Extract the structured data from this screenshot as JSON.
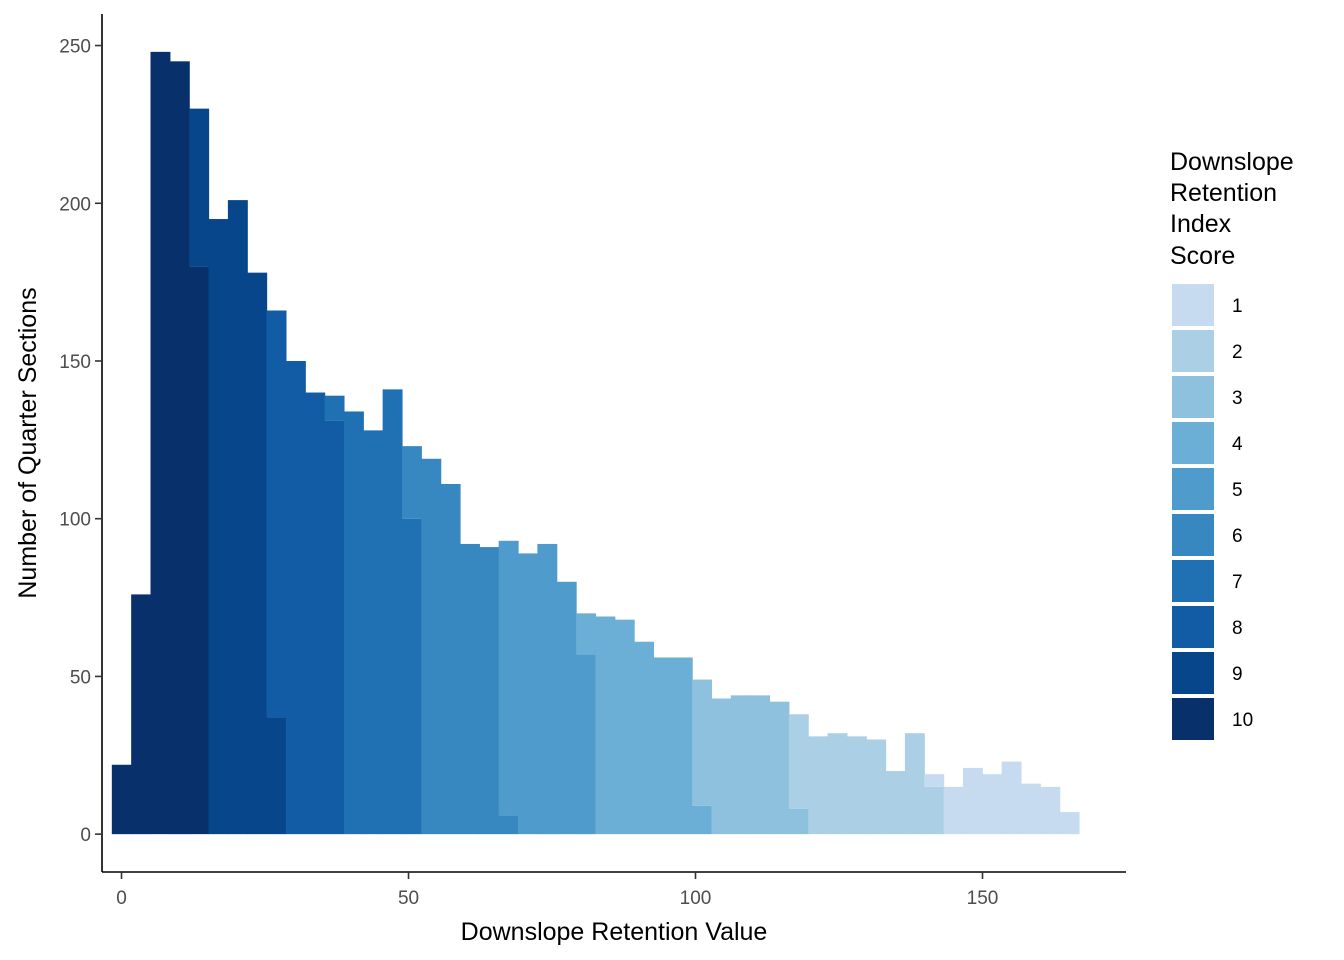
{
  "chart_data": {
    "type": "bar",
    "subtype": "stacked-histogram",
    "xlabel": "Downslope Retention Value",
    "ylabel": "Number of Quarter Sections",
    "xlim": [
      -3.4,
      175
    ],
    "ylim": [
      -12,
      260
    ],
    "xticks": [
      0,
      50,
      100,
      150
    ],
    "yticks": [
      0,
      50,
      100,
      150,
      200,
      250
    ],
    "bin_width": 3.37,
    "bin_start": -1.69,
    "grid": false,
    "legend": {
      "title": [
        "Downslope",
        "Retention",
        "Index",
        "Score"
      ],
      "position": "right",
      "entries": [
        {
          "label": "1",
          "color": "#C6DBEF"
        },
        {
          "label": "2",
          "color": "#ABCFE5"
        },
        {
          "label": "3",
          "color": "#8EC1DE"
        },
        {
          "label": "4",
          "color": "#6BAED6"
        },
        {
          "label": "5",
          "color": "#4F9BCB"
        },
        {
          "label": "6",
          "color": "#3787C0"
        },
        {
          "label": "7",
          "color": "#2070B4"
        },
        {
          "label": "8",
          "color": "#115CA5"
        },
        {
          "label": "9",
          "color": "#08468B"
        },
        {
          "label": "10",
          "color": "#08306B"
        }
      ]
    },
    "bins": [
      {
        "total": 22,
        "segments": [
          {
            "score": "10",
            "count": 22
          }
        ]
      },
      {
        "total": 76,
        "segments": [
          {
            "score": "10",
            "count": 76
          }
        ]
      },
      {
        "total": 248,
        "segments": [
          {
            "score": "10",
            "count": 248
          }
        ]
      },
      {
        "total": 245,
        "segments": [
          {
            "score": "10",
            "count": 245
          }
        ]
      },
      {
        "total": 230,
        "segments": [
          {
            "score": "10",
            "count": 180
          },
          {
            "score": "9",
            "count": 50
          }
        ]
      },
      {
        "total": 195,
        "segments": [
          {
            "score": "9",
            "count": 195
          }
        ]
      },
      {
        "total": 201,
        "segments": [
          {
            "score": "9",
            "count": 201
          }
        ]
      },
      {
        "total": 178,
        "segments": [
          {
            "score": "9",
            "count": 178
          }
        ]
      },
      {
        "total": 166,
        "segments": [
          {
            "score": "9",
            "count": 37
          },
          {
            "score": "8",
            "count": 129
          }
        ]
      },
      {
        "total": 150,
        "segments": [
          {
            "score": "8",
            "count": 150
          }
        ]
      },
      {
        "total": 140,
        "segments": [
          {
            "score": "8",
            "count": 140
          }
        ]
      },
      {
        "total": 139,
        "segments": [
          {
            "score": "8",
            "count": 131
          },
          {
            "score": "7",
            "count": 8
          }
        ]
      },
      {
        "total": 134,
        "segments": [
          {
            "score": "7",
            "count": 134
          }
        ]
      },
      {
        "total": 128,
        "segments": [
          {
            "score": "7",
            "count": 128
          }
        ]
      },
      {
        "total": 141,
        "segments": [
          {
            "score": "7",
            "count": 141
          }
        ]
      },
      {
        "total": 123,
        "segments": [
          {
            "score": "7",
            "count": 100
          },
          {
            "score": "6",
            "count": 23
          }
        ]
      },
      {
        "total": 119,
        "segments": [
          {
            "score": "6",
            "count": 119
          }
        ]
      },
      {
        "total": 111,
        "segments": [
          {
            "score": "6",
            "count": 111
          }
        ]
      },
      {
        "total": 92,
        "segments": [
          {
            "score": "6",
            "count": 92
          }
        ]
      },
      {
        "total": 91,
        "segments": [
          {
            "score": "6",
            "count": 91
          }
        ]
      },
      {
        "total": 93,
        "segments": [
          {
            "score": "6",
            "count": 6
          },
          {
            "score": "5",
            "count": 87
          }
        ]
      },
      {
        "total": 89,
        "segments": [
          {
            "score": "5",
            "count": 89
          }
        ]
      },
      {
        "total": 92,
        "segments": [
          {
            "score": "5",
            "count": 92
          }
        ]
      },
      {
        "total": 80,
        "segments": [
          {
            "score": "5",
            "count": 80
          }
        ]
      },
      {
        "total": 70,
        "segments": [
          {
            "score": "5",
            "count": 57
          },
          {
            "score": "4",
            "count": 13
          }
        ]
      },
      {
        "total": 69,
        "segments": [
          {
            "score": "4",
            "count": 69
          }
        ]
      },
      {
        "total": 68,
        "segments": [
          {
            "score": "4",
            "count": 68
          }
        ]
      },
      {
        "total": 61,
        "segments": [
          {
            "score": "4",
            "count": 61
          }
        ]
      },
      {
        "total": 56,
        "segments": [
          {
            "score": "4",
            "count": 56
          }
        ]
      },
      {
        "total": 56,
        "segments": [
          {
            "score": "4",
            "count": 56
          }
        ]
      },
      {
        "total": 49,
        "segments": [
          {
            "score": "4",
            "count": 9
          },
          {
            "score": "3",
            "count": 40
          }
        ]
      },
      {
        "total": 43,
        "segments": [
          {
            "score": "3",
            "count": 43
          }
        ]
      },
      {
        "total": 44,
        "segments": [
          {
            "score": "3",
            "count": 44
          }
        ]
      },
      {
        "total": 44,
        "segments": [
          {
            "score": "3",
            "count": 44
          }
        ]
      },
      {
        "total": 42,
        "segments": [
          {
            "score": "3",
            "count": 42
          }
        ]
      },
      {
        "total": 38,
        "segments": [
          {
            "score": "3",
            "count": 8
          },
          {
            "score": "2",
            "count": 30
          }
        ]
      },
      {
        "total": 31,
        "segments": [
          {
            "score": "2",
            "count": 31
          }
        ]
      },
      {
        "total": 32,
        "segments": [
          {
            "score": "2",
            "count": 32
          }
        ]
      },
      {
        "total": 31,
        "segments": [
          {
            "score": "2",
            "count": 31
          }
        ]
      },
      {
        "total": 30,
        "segments": [
          {
            "score": "2",
            "count": 30
          }
        ]
      },
      {
        "total": 20,
        "segments": [
          {
            "score": "2",
            "count": 20
          }
        ]
      },
      {
        "total": 32,
        "segments": [
          {
            "score": "2",
            "count": 32
          }
        ]
      },
      {
        "total": 19,
        "segments": [
          {
            "score": "2",
            "count": 15
          },
          {
            "score": "1",
            "count": 4
          }
        ]
      },
      {
        "total": 15,
        "segments": [
          {
            "score": "1",
            "count": 15
          }
        ]
      },
      {
        "total": 21,
        "segments": [
          {
            "score": "1",
            "count": 21
          }
        ]
      },
      {
        "total": 19,
        "segments": [
          {
            "score": "1",
            "count": 19
          }
        ]
      },
      {
        "total": 23,
        "segments": [
          {
            "score": "1",
            "count": 23
          }
        ]
      },
      {
        "total": 16,
        "segments": [
          {
            "score": "1",
            "count": 16
          }
        ]
      },
      {
        "total": 15,
        "segments": [
          {
            "score": "1",
            "count": 15
          }
        ]
      },
      {
        "total": 7,
        "segments": [
          {
            "score": "1",
            "count": 7
          }
        ]
      }
    ]
  }
}
